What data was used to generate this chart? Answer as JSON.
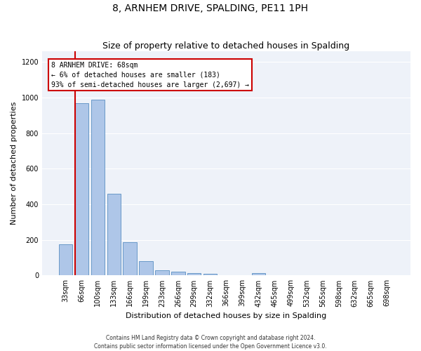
{
  "title": "8, ARNHEM DRIVE, SPALDING, PE11 1PH",
  "subtitle": "Size of property relative to detached houses in Spalding",
  "xlabel": "Distribution of detached houses by size in Spalding",
  "ylabel": "Number of detached properties",
  "categories": [
    "33sqm",
    "66sqm",
    "100sqm",
    "133sqm",
    "166sqm",
    "199sqm",
    "233sqm",
    "266sqm",
    "299sqm",
    "332sqm",
    "366sqm",
    "399sqm",
    "432sqm",
    "465sqm",
    "499sqm",
    "532sqm",
    "565sqm",
    "598sqm",
    "632sqm",
    "665sqm",
    "698sqm"
  ],
  "values": [
    175,
    970,
    990,
    460,
    188,
    80,
    28,
    20,
    13,
    8,
    0,
    0,
    14,
    0,
    0,
    0,
    0,
    0,
    0,
    0,
    0
  ],
  "bar_color": "#aec6e8",
  "bar_edge_color": "#5a8fc2",
  "subject_line_color": "#cc0000",
  "subject_label": "8 ARNHEM DRIVE: 68sqm",
  "annotation_line1": "← 6% of detached houses are smaller (183)",
  "annotation_line2": "93% of semi-detached houses are larger (2,697) →",
  "annotation_box_facecolor": "#ffffff",
  "annotation_box_edgecolor": "#cc0000",
  "ylim": [
    0,
    1260
  ],
  "yticks": [
    0,
    200,
    400,
    600,
    800,
    1000,
    1200
  ],
  "background_color": "#eef2f9",
  "grid_color": "#ffffff",
  "footer_line1": "Contains HM Land Registry data © Crown copyright and database right 2024.",
  "footer_line2": "Contains public sector information licensed under the Open Government Licence v3.0.",
  "title_fontsize": 10,
  "subtitle_fontsize": 9,
  "xlabel_fontsize": 8,
  "ylabel_fontsize": 8,
  "tick_fontsize": 7,
  "annot_fontsize": 7,
  "footer_fontsize": 5.5
}
